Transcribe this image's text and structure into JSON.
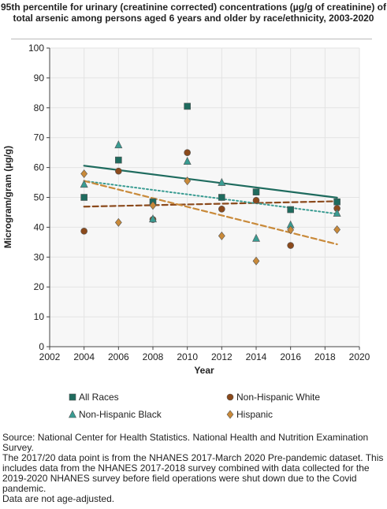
{
  "chart_data": {
    "type": "scatter",
    "title": "95th percentile for urinary (creatinine corrected) concentrations (µg/g of creatinine) of total arsenic among persons aged 6 years and older by race/ethnicity, 2003-2020",
    "xlabel": "Year",
    "ylabel": "Microgram/gram (µg/g)",
    "xlim": [
      2002,
      2020
    ],
    "ylim": [
      0,
      100
    ],
    "x_ticks": [
      "2002",
      "2004",
      "2006",
      "2008",
      "2010",
      "2012",
      "2014",
      "2016",
      "2018",
      "2020"
    ],
    "y_ticks": [
      "0",
      "10",
      "20",
      "30",
      "40",
      "50",
      "60",
      "70",
      "80",
      "90",
      "100"
    ],
    "grid": true,
    "legend_position": "bottom",
    "series": [
      {
        "name": "All Races",
        "marker": "square",
        "color": "#1e6b5e",
        "trend_style": "solid",
        "x": [
          2004,
          2006,
          2008,
          2010,
          2012,
          2014,
          2016,
          2018.7
        ],
        "values": [
          50.0,
          62.5,
          48.5,
          80.5,
          50.0,
          51.8,
          45.9,
          48.5
        ],
        "trend": [
          [
            2004,
            60.6
          ],
          [
            2018.7,
            49.9
          ]
        ]
      },
      {
        "name": "Non-Hispanic White",
        "marker": "circle",
        "color": "#8b4a1c",
        "trend_style": "dashed",
        "x": [
          2004,
          2006,
          2008,
          2010,
          2012,
          2014,
          2016,
          2018.7
        ],
        "values": [
          38.7,
          58.8,
          42.6,
          65.0,
          46.1,
          49.0,
          33.9,
          46.3
        ],
        "trend": [
          [
            2004,
            46.9
          ],
          [
            2018.7,
            48.7
          ]
        ]
      },
      {
        "name": "Non-Hispanic Black",
        "marker": "triangle",
        "color": "#3a9c92",
        "trend_style": "dotted",
        "x": [
          2004,
          2006,
          2008,
          2010,
          2012,
          2014,
          2016,
          2018.7
        ],
        "values": [
          54.4,
          67.6,
          42.8,
          62.1,
          55.0,
          36.3,
          40.8,
          44.7
        ],
        "trend": [
          [
            2004,
            55.5
          ],
          [
            2018.7,
            44.5
          ]
        ]
      },
      {
        "name": "Hispanic",
        "marker": "diamond",
        "color": "#c98a3a",
        "trend_style": "dashed",
        "x": [
          2004,
          2006,
          2008,
          2010,
          2012,
          2014,
          2016,
          2018.7
        ],
        "values": [
          57.9,
          41.6,
          47.3,
          55.5,
          37.1,
          28.7,
          39.1,
          39.2
        ],
        "trend": [
          [
            2004,
            55.5
          ],
          [
            2018.7,
            34.3
          ]
        ]
      }
    ]
  },
  "notes": [
    "Source: National Center for Health Statistics. National Health and Nutrition Examination Survey.",
    "The 2017/20 data point is from the NHANES 2017-March 2020 Pre-pandemic dataset. This includes data from the NHANES 2017-2018 survey combined with data collected for the 2019-2020 NHANES survey before field operations were shut down due to the Covid pandemic.",
    "Data are not age-adjusted."
  ],
  "colors": {
    "plot_background": "#f7f7f7",
    "grid": "#e3e3e3",
    "axis": "#444444",
    "text": "#222222"
  }
}
